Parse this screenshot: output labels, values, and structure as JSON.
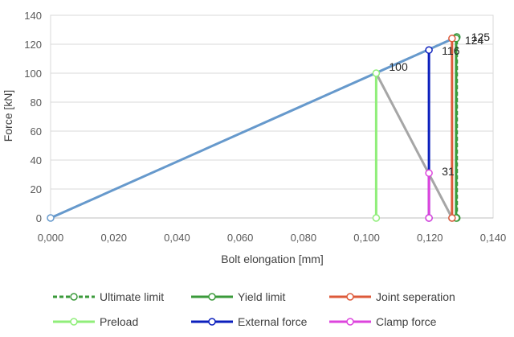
{
  "chart_data": {
    "type": "line",
    "xlabel": "Bolt elongation [mm]",
    "ylabel": "Force [kN]",
    "xlim": [
      0,
      0.14
    ],
    "ylim": [
      0,
      140
    ],
    "x_ticks": [
      "0,000",
      "0,020",
      "0,040",
      "0,060",
      "0,080",
      "0,100",
      "0,120",
      "0,140"
    ],
    "x_tick_values": [
      0,
      0.02,
      0.04,
      0.06,
      0.08,
      0.1,
      0.12,
      0.14
    ],
    "y_ticks": [
      "0",
      "20",
      "40",
      "60",
      "80",
      "100",
      "120",
      "140"
    ],
    "y_tick_values": [
      0,
      20,
      40,
      60,
      80,
      100,
      120,
      140
    ],
    "grid": "horizontal",
    "legend_position": "bottom",
    "lines": [
      {
        "key": "bolt-load-line",
        "color": "#6699cc",
        "points": [
          [
            0,
            0
          ],
          [
            0.1285,
            125
          ]
        ]
      },
      {
        "key": "joint-stiffness-line",
        "color": "#a6a6a6",
        "points": [
          [
            0.103,
            100
          ],
          [
            0.127,
            0
          ]
        ]
      }
    ],
    "series": [
      {
        "name": "Ultimate limit",
        "color": "#3a9a3a",
        "dashed": true,
        "points": [
          [
            0.1285,
            0
          ],
          [
            0.1285,
            125
          ]
        ]
      },
      {
        "name": "Yield limit",
        "color": "#3a9a3a",
        "dashed": false,
        "points": [
          [
            0.1283,
            0
          ],
          [
            0.1283,
            124
          ]
        ]
      },
      {
        "name": "Joint seperation",
        "color": "#dd5a3a",
        "dashed": false,
        "points": [
          [
            0.127,
            0
          ],
          [
            0.127,
            124
          ]
        ]
      },
      {
        "name": "Preload",
        "color": "#90ee7a",
        "dashed": false,
        "points": [
          [
            0.103,
            0
          ],
          [
            0.103,
            100
          ]
        ]
      },
      {
        "name": "External force",
        "color": "#0b1fbd",
        "dashed": false,
        "points": [
          [
            0.1197,
            0
          ],
          [
            0.1197,
            116
          ]
        ]
      },
      {
        "name": "Clamp force",
        "color": "#dd44dd",
        "dashed": false,
        "points": [
          [
            0.1197,
            0
          ],
          [
            0.1197,
            31
          ]
        ]
      }
    ],
    "data_labels": [
      {
        "text": "125",
        "x": 0.1285,
        "y": 125
      },
      {
        "text": "124",
        "x": 0.127,
        "y": 124
      },
      {
        "text": "116",
        "x": 0.1197,
        "y": 116
      },
      {
        "text": "100",
        "x": 0.103,
        "y": 100
      },
      {
        "text": "31",
        "x": 0.1197,
        "y": 31
      }
    ]
  }
}
